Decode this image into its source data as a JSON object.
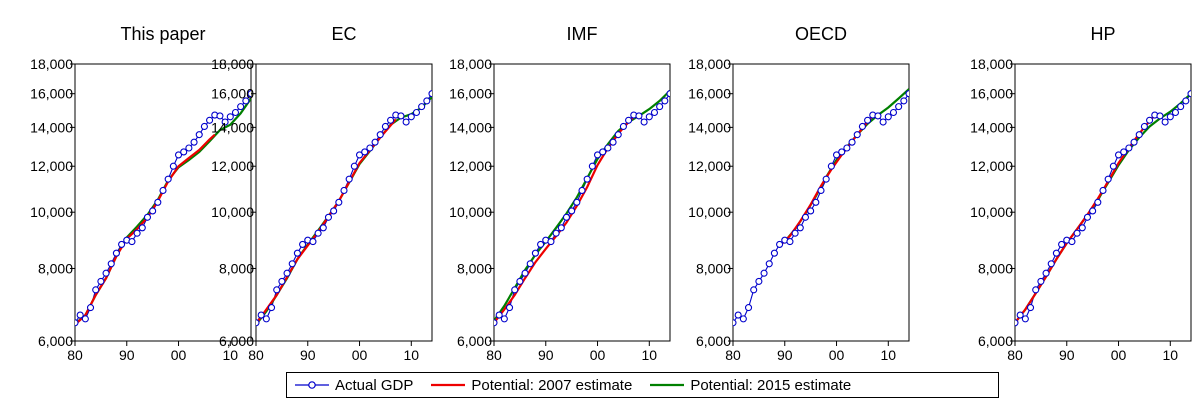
{
  "legend": {
    "actual": "Actual GDP",
    "pot2007": "Potential: 2007 estimate",
    "pot2015": "Potential: 2015 estimate"
  },
  "colors": {
    "actual": "#0000cc",
    "pot2007": "#ee0000",
    "pot2015": "#008000"
  },
  "chart_data": [
    {
      "type": "line",
      "title": "This paper",
      "yscale": "log",
      "ylim": [
        6000,
        18000
      ],
      "xlim": [
        1980,
        2014
      ],
      "yticks": [
        6000,
        8000,
        10000,
        12000,
        14000,
        16000,
        18000
      ],
      "ytick_labels": [
        "6,000",
        "8,000",
        "10,000",
        "12,000",
        "14,000",
        "16,000",
        "18,000"
      ],
      "xticks": [
        1980,
        1990,
        2000,
        2010
      ],
      "xtick_labels": [
        "80",
        "90",
        "00",
        "10"
      ],
      "series": [
        {
          "name": "Actual GDP",
          "x": [
            1980,
            1981,
            1982,
            1983,
            1984,
            1985,
            1986,
            1987,
            1988,
            1989,
            1990,
            1991,
            1992,
            1993,
            1994,
            1995,
            1996,
            1997,
            1998,
            1999,
            2000,
            2001,
            2002,
            2003,
            2004,
            2005,
            2006,
            2007,
            2008,
            2009,
            2010,
            2011,
            2012,
            2013,
            2014
          ],
          "y": [
            6450,
            6650,
            6550,
            6850,
            7350,
            7600,
            7850,
            8150,
            8500,
            8800,
            8950,
            8900,
            9200,
            9400,
            9800,
            10050,
            10400,
            10900,
            11400,
            12000,
            12550,
            12700,
            12900,
            13200,
            13600,
            14050,
            14400,
            14700,
            14650,
            14300,
            14600,
            14850,
            15200,
            15550,
            16000
          ]
        },
        {
          "name": "Potential: 2007 estimate",
          "x": [
            1980,
            1982,
            1984,
            1986,
            1988,
            1990,
            1992,
            1994,
            1996,
            1998,
            2000,
            2002,
            2004,
            2006,
            2007
          ],
          "y": [
            6400,
            6650,
            7200,
            7700,
            8400,
            9000,
            9350,
            9800,
            10450,
            11300,
            12000,
            12400,
            12800,
            13350,
            13600
          ]
        },
        {
          "name": "Potential: 2015 estimate",
          "x": [
            1980,
            1982,
            1984,
            1986,
            1988,
            1990,
            1992,
            1994,
            1996,
            1998,
            2000,
            2002,
            2004,
            2006,
            2007,
            2008,
            2010,
            2012,
            2014
          ],
          "y": [
            6420,
            6650,
            7200,
            7700,
            8400,
            9050,
            9450,
            9900,
            10500,
            11350,
            11950,
            12300,
            12700,
            13250,
            13550,
            13850,
            14150,
            14800,
            15700
          ]
        }
      ]
    },
    {
      "type": "line",
      "title": "EC",
      "yscale": "log",
      "ylim": [
        6000,
        18000
      ],
      "xlim": [
        1980,
        2014
      ],
      "yticks": [
        6000,
        8000,
        10000,
        12000,
        14000,
        16000,
        18000
      ],
      "ytick_labels": [
        "6,000",
        "8,000",
        "10,000",
        "12,000",
        "14,000",
        "16,000",
        "18,000"
      ],
      "xticks": [
        1980,
        1990,
        2000,
        2010
      ],
      "xtick_labels": [
        "80",
        "90",
        "00",
        "10"
      ],
      "series": [
        {
          "name": "Actual GDP",
          "x": [
            1980,
            1981,
            1982,
            1983,
            1984,
            1985,
            1986,
            1987,
            1988,
            1989,
            1990,
            1991,
            1992,
            1993,
            1994,
            1995,
            1996,
            1997,
            1998,
            1999,
            2000,
            2001,
            2002,
            2003,
            2004,
            2005,
            2006,
            2007,
            2008,
            2009,
            2010,
            2011,
            2012,
            2013,
            2014
          ],
          "y": [
            6450,
            6650,
            6550,
            6850,
            7350,
            7600,
            7850,
            8150,
            8500,
            8800,
            8950,
            8900,
            9200,
            9400,
            9800,
            10050,
            10400,
            10900,
            11400,
            12000,
            12550,
            12700,
            12900,
            13200,
            13600,
            14050,
            14400,
            14700,
            14650,
            14300,
            14600,
            14850,
            15200,
            15550,
            16000
          ]
        },
        {
          "name": "Potential: 2007 estimate",
          "x": [
            1980,
            1984,
            1988,
            1992,
            1996,
            2000,
            2004,
            2007
          ],
          "y": [
            6420,
            7200,
            8300,
            9250,
            10450,
            12150,
            13450,
            14450
          ]
        },
        {
          "name": "Potential: 2015 estimate",
          "x": [
            1980,
            1982,
            1984,
            1986,
            1988,
            1990,
            1992,
            1994,
            1996,
            1998,
            2000,
            2002,
            2004,
            2006,
            2008,
            2010,
            2012,
            2014
          ],
          "y": [
            6400,
            6750,
            7200,
            7700,
            8300,
            8800,
            9300,
            9850,
            10450,
            11250,
            12100,
            12750,
            13450,
            14150,
            14550,
            14750,
            15150,
            15800
          ]
        }
      ]
    },
    {
      "type": "line",
      "title": "IMF",
      "yscale": "log",
      "ylim": [
        6000,
        18000
      ],
      "xlim": [
        1980,
        2014
      ],
      "yticks": [
        6000,
        8000,
        10000,
        12000,
        14000,
        16000,
        18000
      ],
      "ytick_labels": [
        "6,000",
        "8,000",
        "10,000",
        "12,000",
        "14,000",
        "16,000",
        "18,000"
      ],
      "xticks": [
        1980,
        1990,
        2000,
        2010
      ],
      "xtick_labels": [
        "80",
        "90",
        "00",
        "10"
      ],
      "series": [
        {
          "name": "Actual GDP",
          "x": [
            1980,
            1981,
            1982,
            1983,
            1984,
            1985,
            1986,
            1987,
            1988,
            1989,
            1990,
            1991,
            1992,
            1993,
            1994,
            1995,
            1996,
            1997,
            1998,
            1999,
            2000,
            2001,
            2002,
            2003,
            2004,
            2005,
            2006,
            2007,
            2008,
            2009,
            2010,
            2011,
            2012,
            2013,
            2014
          ],
          "y": [
            6450,
            6650,
            6550,
            6850,
            7350,
            7600,
            7850,
            8150,
            8500,
            8800,
            8950,
            8900,
            9200,
            9400,
            9800,
            10050,
            10400,
            10900,
            11400,
            12000,
            12550,
            12700,
            12900,
            13200,
            13600,
            14050,
            14400,
            14700,
            14650,
            14300,
            14600,
            14850,
            15200,
            15550,
            16000
          ]
        },
        {
          "name": "Potential: 2007 estimate",
          "x": [
            1980,
            1982,
            1984,
            1986,
            1988,
            1990,
            1992,
            1994,
            1996,
            1998,
            2000,
            2002,
            2004,
            2006,
            2007
          ],
          "y": [
            6450,
            6800,
            7200,
            7700,
            8200,
            8650,
            9100,
            9600,
            10250,
            11050,
            12050,
            12900,
            13650,
            14300,
            14600
          ]
        },
        {
          "name": "Potential: 2015 estimate",
          "x": [
            1980,
            1982,
            1984,
            1986,
            1988,
            1990,
            1992,
            1994,
            1996,
            1998,
            2000,
            2002,
            2004,
            2006,
            2008,
            2010,
            2012,
            2014
          ],
          "y": [
            6500,
            6900,
            7400,
            7950,
            8450,
            8900,
            9400,
            9950,
            10600,
            11450,
            12350,
            13100,
            13800,
            14300,
            14650,
            15050,
            15550,
            16200
          ]
        }
      ]
    },
    {
      "type": "line",
      "title": "OECD",
      "yscale": "log",
      "ylim": [
        6000,
        18000
      ],
      "xlim": [
        1980,
        2014
      ],
      "yticks": [
        6000,
        8000,
        10000,
        12000,
        14000,
        16000,
        18000
      ],
      "ytick_labels": [
        "6,000",
        "8,000",
        "10,000",
        "12,000",
        "14,000",
        "16,000",
        "18,000"
      ],
      "xticks": [
        1980,
        1990,
        2000,
        2010
      ],
      "xtick_labels": [
        "80",
        "90",
        "00",
        "10"
      ],
      "series": [
        {
          "name": "Actual GDP",
          "x": [
            1980,
            1981,
            1982,
            1983,
            1984,
            1985,
            1986,
            1987,
            1988,
            1989,
            1990,
            1991,
            1992,
            1993,
            1994,
            1995,
            1996,
            1997,
            1998,
            1999,
            2000,
            2001,
            2002,
            2003,
            2004,
            2005,
            2006,
            2007,
            2008,
            2009,
            2010,
            2011,
            2012,
            2013,
            2014
          ],
          "y": [
            6450,
            6650,
            6550,
            6850,
            7350,
            7600,
            7850,
            8150,
            8500,
            8800,
            8950,
            8900,
            9200,
            9400,
            9800,
            10050,
            10400,
            10900,
            11400,
            12000,
            12550,
            12700,
            12900,
            13200,
            13600,
            14050,
            14400,
            14700,
            14650,
            14300,
            14600,
            14850,
            15200,
            15550,
            16000
          ]
        },
        {
          "name": "Potential: 2007 estimate",
          "x": [
            1989,
            1991,
            1993,
            1995,
            1997,
            1999,
            2001,
            2003,
            2005,
            2007
          ],
          "y": [
            8750,
            9100,
            9650,
            10300,
            11100,
            11850,
            12550,
            13250,
            13950,
            14650
          ]
        },
        {
          "name": "Potential: 2015 estimate",
          "x": [
            1990,
            1992,
            1994,
            1996,
            1998,
            2000,
            2002,
            2004,
            2006,
            2008,
            2010,
            2012,
            2014
          ],
          "y": [
            8900,
            9350,
            9950,
            10650,
            11500,
            12300,
            12950,
            13600,
            14200,
            14700,
            15150,
            15700,
            16300
          ]
        }
      ]
    },
    {
      "type": "line",
      "title": "HP",
      "yscale": "log",
      "ylim": [
        6000,
        18000
      ],
      "xlim": [
        1980,
        2014
      ],
      "yticks": [
        6000,
        8000,
        10000,
        12000,
        14000,
        16000,
        18000
      ],
      "ytick_labels": [
        "6,000",
        "8,000",
        "10,000",
        "12,000",
        "14,000",
        "16,000",
        "18,000"
      ],
      "xticks": [
        1980,
        1990,
        2000,
        2010
      ],
      "xtick_labels": [
        "80",
        "90",
        "00",
        "10"
      ],
      "series": [
        {
          "name": "Actual GDP",
          "x": [
            1980,
            1981,
            1982,
            1983,
            1984,
            1985,
            1986,
            1987,
            1988,
            1989,
            1990,
            1991,
            1992,
            1993,
            1994,
            1995,
            1996,
            1997,
            1998,
            1999,
            2000,
            2001,
            2002,
            2003,
            2004,
            2005,
            2006,
            2007,
            2008,
            2009,
            2010,
            2011,
            2012,
            2013,
            2014
          ],
          "y": [
            6450,
            6650,
            6550,
            6850,
            7350,
            7600,
            7850,
            8150,
            8500,
            8800,
            8950,
            8900,
            9200,
            9400,
            9800,
            10050,
            10400,
            10900,
            11400,
            12000,
            12550,
            12700,
            12900,
            13200,
            13600,
            14050,
            14400,
            14700,
            14650,
            14300,
            14600,
            14850,
            15200,
            15550,
            16000
          ]
        },
        {
          "name": "Potential: 2007 estimate",
          "x": [
            1980,
            1982,
            1984,
            1986,
            1988,
            1990,
            1992,
            1994,
            1996,
            1998,
            2000,
            2002,
            2004,
            2006,
            2007
          ],
          "y": [
            6450,
            6800,
            7250,
            7750,
            8300,
            8850,
            9350,
            9900,
            10550,
            11300,
            12150,
            12900,
            13650,
            14350,
            14700
          ]
        },
        {
          "name": "Potential: 2015 estimate",
          "x": [
            1980,
            1982,
            1984,
            1986,
            1988,
            1990,
            1992,
            1994,
            1996,
            1998,
            2000,
            2002,
            2004,
            2006,
            2008,
            2010,
            2012,
            2014
          ],
          "y": [
            6450,
            6800,
            7250,
            7750,
            8300,
            8850,
            9350,
            9900,
            10500,
            11250,
            12050,
            12800,
            13450,
            14050,
            14500,
            14900,
            15400,
            16000
          ]
        }
      ]
    }
  ]
}
